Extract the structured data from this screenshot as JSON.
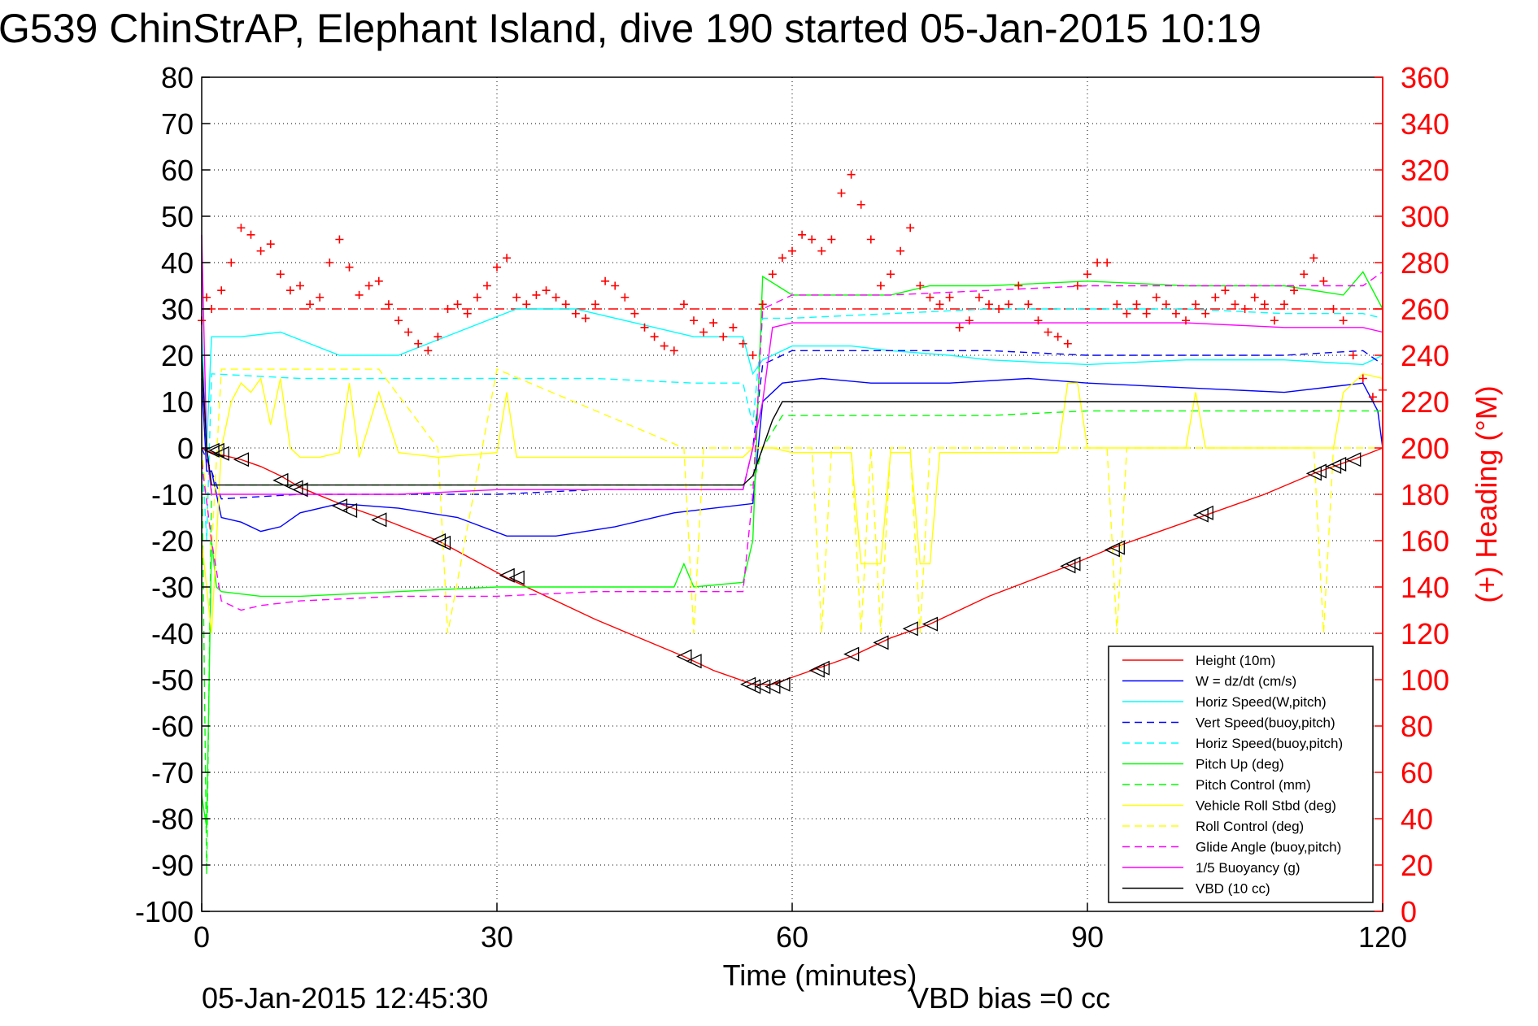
{
  "chart_data": {
    "type": "line",
    "title": "G539 ChinStrAP, Elephant Island, dive 190 started 05-Jan-2015 10:19",
    "xlabel": "Time (minutes)",
    "ylabel_right": "(+) Heading (°M)",
    "footer_left": "05-Jan-2015 12:45:30",
    "footer_right": "VBD bias =0 cc",
    "xlim": [
      0,
      120
    ],
    "ylim": [
      -100,
      80
    ],
    "ylim_right": [
      0,
      360
    ],
    "x_ticks": [
      "0",
      "30",
      "60",
      "90",
      "120"
    ],
    "y_ticks": [
      "80",
      "70",
      "60",
      "50",
      "40",
      "30",
      "20",
      "10",
      "0",
      "-10",
      "-20",
      "-30",
      "-40",
      "-50",
      "-60",
      "-70",
      "-80",
      "-90",
      "-100"
    ],
    "y_ticks_right": [
      "360",
      "340",
      "320",
      "300",
      "280",
      "260",
      "240",
      "220",
      "200",
      "180",
      "160",
      "140",
      "120",
      "100",
      "80",
      "60",
      "40",
      "20",
      "0"
    ],
    "grid": true,
    "legend_position": "bottom-right",
    "heading_reference": 260,
    "series": [
      {
        "name": "Height (10m)",
        "color": "#ff0000",
        "dash": "solid",
        "x": [
          0,
          1,
          2,
          4,
          6,
          8,
          10,
          14,
          18,
          24,
          31,
          40,
          49,
          52,
          56,
          58,
          60,
          62,
          66,
          70,
          74,
          80,
          88,
          92,
          96,
          102,
          108,
          113,
          117,
          120
        ],
        "values": [
          0,
          -1,
          -1.5,
          -2.5,
          -4,
          -6,
          -8.5,
          -12,
          -15,
          -20,
          -28,
          -37,
          -45,
          -48,
          -51,
          -51,
          -49.5,
          -48,
          -45,
          -41,
          -38,
          -32,
          -25.5,
          -22,
          -19,
          -14.5,
          -10,
          -5.5,
          -2.5,
          0
        ]
      },
      {
        "name": "W = dz/dt (cm/s)",
        "color": "#0000ff",
        "dash": "solid",
        "x": [
          0,
          0.5,
          1,
          2,
          4,
          6,
          8,
          10,
          14,
          20,
          26,
          31,
          36,
          42,
          48,
          52,
          56,
          57,
          59,
          63,
          68,
          76,
          84,
          90,
          100,
          110,
          118,
          119.5,
          120
        ],
        "values": [
          15,
          -5,
          -5,
          -15,
          -16,
          -18,
          -17,
          -14,
          -12,
          -13,
          -15,
          -19,
          -19,
          -17,
          -14,
          -13,
          -12,
          10,
          14,
          15,
          14,
          14,
          15,
          14,
          13,
          12,
          14,
          8,
          0
        ]
      },
      {
        "name": "Horiz Speed(W,pitch)",
        "color": "#00ffff",
        "dash": "solid",
        "x": [
          0,
          0.5,
          1,
          4,
          8,
          14,
          20,
          26,
          32,
          38,
          44,
          50,
          55,
          56,
          57,
          60,
          66,
          70,
          76,
          80,
          90,
          100,
          110,
          118,
          120
        ],
        "values": [
          25,
          0,
          24,
          24,
          25,
          20,
          20,
          25,
          30,
          30,
          27,
          24,
          24,
          16,
          19,
          22,
          22,
          21,
          20,
          19,
          18,
          19,
          19,
          18,
          20
        ]
      },
      {
        "name": "Vert Speed(buoy,pitch)",
        "color": "#0000ff",
        "dash": "dashed",
        "x": [
          0,
          1,
          2,
          10,
          20,
          30,
          40,
          50,
          55,
          56,
          57,
          60,
          70,
          80,
          90,
          100,
          110,
          118,
          120
        ],
        "values": [
          0,
          -5,
          -11,
          -10,
          -10,
          -10,
          -9,
          -9,
          -9,
          0,
          18,
          21,
          21,
          21,
          20,
          20,
          20,
          21,
          18
        ]
      },
      {
        "name": "Horiz Speed(buoy,pitch)",
        "color": "#00ffff",
        "dash": "dashed",
        "x": [
          0,
          0.5,
          1,
          10,
          20,
          30,
          40,
          50,
          55,
          56,
          57,
          60,
          70,
          80,
          90,
          100,
          110,
          118,
          120
        ],
        "values": [
          0,
          -20,
          16,
          15,
          15,
          15,
          15,
          14,
          14,
          5,
          28,
          28,
          29,
          30,
          30,
          30,
          29,
          29,
          28
        ]
      },
      {
        "name": "Pitch Up (deg)",
        "color": "#00ff00",
        "dash": "solid",
        "x": [
          0,
          0.5,
          1,
          1.5,
          2,
          6,
          10,
          20,
          30,
          40,
          48,
          49,
          50,
          55,
          56,
          57,
          60,
          70,
          74,
          80,
          90,
          100,
          110,
          116,
          118,
          120
        ],
        "values": [
          -75,
          -82,
          -20,
          -30,
          -31,
          -32,
          -32,
          -31,
          -30,
          -30,
          -30,
          -25,
          -30,
          -29,
          -20,
          37,
          33,
          33,
          35,
          35,
          36,
          35,
          35,
          33,
          38,
          30
        ]
      },
      {
        "name": "Pitch Control (mm)",
        "color": "#00ff00",
        "dash": "dashed",
        "x": [
          0,
          0.5,
          1,
          2,
          10,
          20,
          30,
          40,
          50,
          55,
          56,
          57,
          59,
          60,
          70,
          80,
          90,
          100,
          110,
          120
        ],
        "values": [
          0,
          -92,
          -8,
          -8,
          -8,
          -8,
          -8,
          -8,
          -8,
          -8,
          -8,
          0,
          7,
          7,
          7,
          7,
          8,
          8,
          8,
          8
        ]
      },
      {
        "name": "Vehicle Roll Stbd (deg)",
        "color": "#ffff00",
        "dash": "solid",
        "x": [
          0,
          1,
          2,
          3,
          4,
          5,
          6,
          7,
          8,
          9,
          10,
          12,
          14,
          15,
          16,
          18,
          20,
          24,
          30,
          31,
          32,
          34,
          40,
          50,
          55,
          56,
          58,
          60,
          66,
          67,
          68,
          69,
          70,
          72,
          73,
          74,
          75,
          80,
          87,
          88,
          89,
          90,
          100,
          101,
          102,
          110,
          115,
          116,
          117,
          118,
          120
        ],
        "values": [
          -20,
          -40,
          0,
          10,
          14,
          12,
          15,
          5,
          15,
          0,
          -2,
          -2,
          -1,
          14,
          -2,
          12,
          -1,
          -2,
          -1,
          12,
          -2,
          -2,
          -2,
          -2,
          -2,
          0,
          0,
          -1,
          -1,
          -25,
          -25,
          -25,
          -1,
          -1,
          -25,
          -25,
          -1,
          -1,
          -1,
          14,
          14,
          0,
          0,
          12,
          0,
          0,
          0,
          12,
          14,
          16,
          15
        ]
      },
      {
        "name": "Roll Control (deg)",
        "color": "#ffff00",
        "dash": "dashed",
        "x": [
          0,
          1,
          2,
          3,
          10,
          14,
          18,
          24,
          25,
          30,
          49,
          50,
          51,
          56,
          60,
          62,
          63,
          64,
          66,
          67,
          68,
          69,
          70,
          72,
          73,
          74,
          75,
          80,
          92,
          93,
          94,
          100,
          113,
          114,
          115,
          116,
          118,
          120
        ],
        "values": [
          0,
          -22,
          17,
          17,
          17,
          17,
          17,
          0,
          -40,
          17,
          0,
          -40,
          0,
          0,
          0,
          0,
          -40,
          0,
          0,
          -40,
          0,
          -40,
          0,
          0,
          -40,
          0,
          0,
          0,
          0,
          -40,
          0,
          0,
          0,
          -40,
          0,
          0,
          0,
          0
        ]
      },
      {
        "name": "Glide Angle (buoy,pitch)",
        "color": "#ff00ff",
        "dash": "dashed",
        "x": [
          0,
          1,
          2,
          4,
          6,
          10,
          20,
          30,
          40,
          50,
          55,
          56,
          57,
          60,
          70,
          80,
          90,
          100,
          110,
          118,
          120
        ],
        "values": [
          -3,
          -20,
          -33,
          -35,
          -34,
          -33,
          -32,
          -32,
          -31,
          -31,
          -31,
          -10,
          30,
          33,
          33,
          34,
          35,
          35,
          35,
          35,
          38
        ]
      },
      {
        "name": "1/5 Buoyancy (g)",
        "color": "#ff00ff",
        "dash": "solid",
        "x": [
          0,
          0.5,
          1,
          2,
          10,
          20,
          30,
          40,
          50,
          55,
          56,
          57,
          58,
          60,
          70,
          80,
          90,
          100,
          110,
          118,
          120
        ],
        "values": [
          46,
          0,
          -10,
          -10,
          -10,
          -10,
          -9,
          -9,
          -9,
          -9,
          0,
          10,
          26,
          27,
          27,
          27,
          27,
          27,
          26,
          26,
          25
        ]
      },
      {
        "name": "VBD (10 cc)",
        "color": "#000000",
        "dash": "solid",
        "x": [
          0,
          0.5,
          1,
          1.5,
          2,
          10,
          20,
          30,
          40,
          50,
          55,
          56,
          57,
          58,
          59,
          60,
          70,
          80,
          90,
          100,
          110,
          118,
          119,
          120
        ],
        "values": [
          20,
          0,
          -8,
          -8,
          -8,
          -8,
          -8,
          -8,
          -8,
          -8,
          -8,
          -6,
          0,
          6,
          10,
          10,
          10,
          10,
          10,
          10,
          10,
          10,
          10,
          10
        ]
      }
    ],
    "heading_series": {
      "name": "(+) Heading",
      "color": "#ff0000",
      "marker": "+",
      "x": [
        0,
        0.5,
        1,
        2,
        3,
        4,
        5,
        6,
        7,
        8,
        9,
        10,
        11,
        12,
        13,
        14,
        15,
        16,
        17,
        18,
        19,
        20,
        21,
        22,
        23,
        24,
        25,
        26,
        27,
        28,
        29,
        30,
        31,
        32,
        33,
        34,
        35,
        36,
        37,
        38,
        39,
        40,
        41,
        42,
        43,
        44,
        45,
        46,
        47,
        48,
        49,
        50,
        51,
        52,
        53,
        54,
        55,
        56,
        57,
        58,
        59,
        60,
        61,
        62,
        63,
        64,
        65,
        66,
        67,
        68,
        69,
        70,
        71,
        72,
        73,
        74,
        75,
        76,
        77,
        78,
        79,
        80,
        81,
        82,
        83,
        84,
        85,
        86,
        87,
        88,
        89,
        90,
        91,
        92,
        93,
        94,
        95,
        96,
        97,
        98,
        99,
        100,
        101,
        102,
        103,
        104,
        105,
        106,
        107,
        108,
        109,
        110,
        111,
        112,
        113,
        114,
        115,
        116,
        117,
        118,
        119,
        120
      ],
      "values": [
        255,
        265,
        260,
        268,
        280,
        295,
        292,
        285,
        288,
        275,
        268,
        270,
        262,
        265,
        280,
        290,
        278,
        266,
        270,
        272,
        262,
        255,
        250,
        245,
        242,
        248,
        260,
        262,
        258,
        265,
        270,
        278,
        282,
        265,
        262,
        266,
        268,
        265,
        262,
        258,
        256,
        262,
        272,
        270,
        265,
        258,
        252,
        248,
        244,
        242,
        262,
        255,
        250,
        254,
        248,
        252,
        245,
        240,
        262,
        275,
        282,
        285,
        292,
        290,
        285,
        290,
        310,
        318,
        305,
        290,
        270,
        275,
        285,
        295,
        270,
        265,
        262,
        265,
        252,
        255,
        265,
        262,
        260,
        262,
        270,
        262,
        255,
        250,
        248,
        245,
        270,
        275,
        280,
        280,
        262,
        258,
        262,
        258,
        265,
        262,
        258,
        255,
        262,
        258,
        265,
        268,
        262,
        260,
        265,
        262,
        255,
        262,
        268,
        275,
        282,
        272,
        260,
        255,
        240,
        230,
        222,
        225
      ]
    },
    "triangle_markers": {
      "x": [
        1,
        1.5,
        2,
        4,
        8,
        9.5,
        10,
        14,
        15,
        18,
        24,
        24.5,
        31,
        32,
        49,
        50,
        55.5,
        56,
        57,
        58,
        59,
        62.5,
        63,
        66,
        69,
        72,
        74,
        88,
        88.5,
        92.5,
        93,
        101.5,
        102,
        113,
        113.5,
        115,
        115.5,
        117
      ],
      "values": [
        -0.5,
        -0.5,
        -1.2,
        -2.5,
        -7,
        -8.5,
        -9,
        -12.5,
        -13.5,
        -15.5,
        -20,
        -20.5,
        -27.5,
        -28,
        -45,
        -46,
        -51,
        -51.5,
        -51.5,
        -51.5,
        -51,
        -48,
        -47.5,
        -44.5,
        -42,
        -39,
        -38,
        -25.5,
        -25,
        -22,
        -21.5,
        -14.5,
        -14,
        -5.5,
        -5,
        -4,
        -3.5,
        -2.5
      ]
    }
  }
}
